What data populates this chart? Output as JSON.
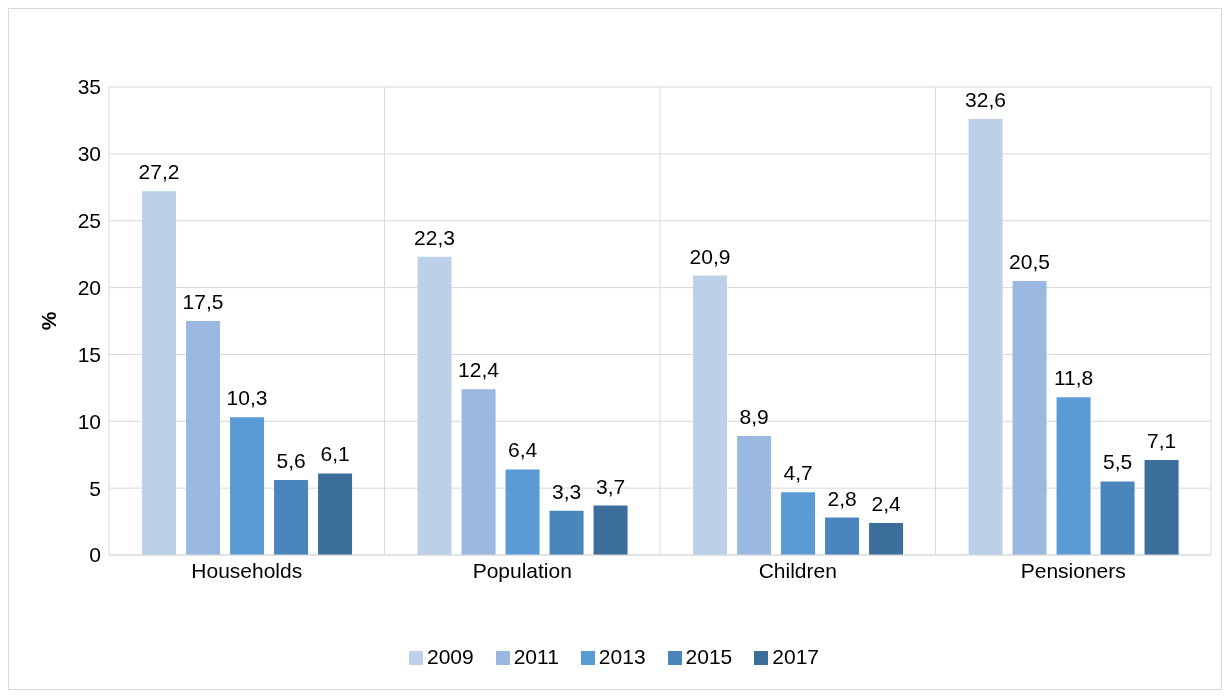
{
  "chart_data": {
    "type": "bar",
    "ylabel": "%",
    "categories": [
      "Households",
      "Population",
      "Children",
      "Pensioners"
    ],
    "series": [
      {
        "name": "2009",
        "color": "#bdd0ea",
        "values": [
          27.2,
          22.3,
          20.9,
          32.6
        ],
        "value_labels": [
          "27,2",
          "22,3",
          "20,9",
          "32,6"
        ]
      },
      {
        "name": "2011",
        "color": "#9bb8e0",
        "values": [
          17.5,
          12.4,
          8.9,
          20.5
        ],
        "value_labels": [
          "17,5",
          "12,4",
          "8,9",
          "20,5"
        ]
      },
      {
        "name": "2013",
        "color": "#5b9bd5",
        "values": [
          10.3,
          6.4,
          4.7,
          11.8
        ],
        "value_labels": [
          "10,3",
          "6,4",
          "4,7",
          "11,8"
        ]
      },
      {
        "name": "2015",
        "color": "#4a85bb",
        "values": [
          5.6,
          3.3,
          2.8,
          5.5
        ],
        "value_labels": [
          "5,6",
          "3,3",
          "2,8",
          "5,5"
        ]
      },
      {
        "name": "2017",
        "color": "#3c6e9c",
        "values": [
          6.1,
          3.7,
          2.4,
          7.1
        ],
        "value_labels": [
          "6,1",
          "3,7",
          "2,4",
          "7,1"
        ]
      }
    ],
    "ylim": [
      0,
      35
    ],
    "yticks": [
      0,
      5,
      10,
      15,
      20,
      25,
      30,
      35
    ],
    "grid": true,
    "legend": "bottom"
  }
}
